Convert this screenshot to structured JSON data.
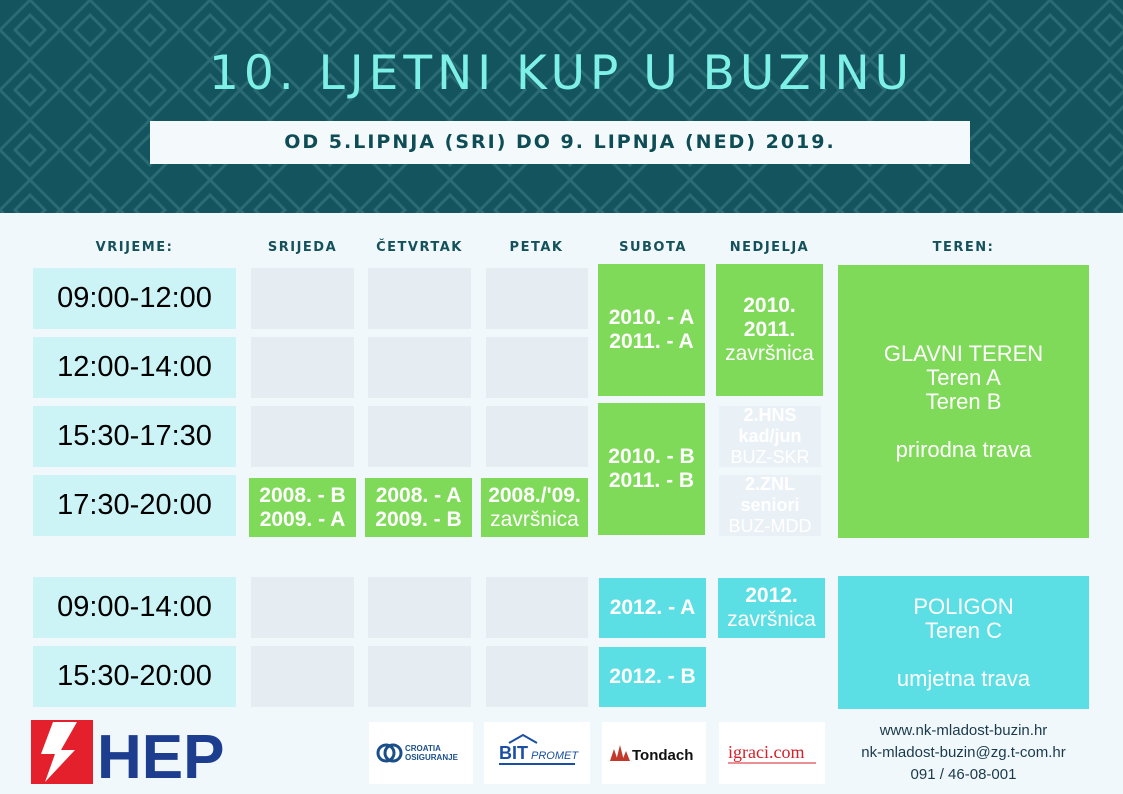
{
  "header": {
    "title": "10. LJETNI KUP U BUZINU",
    "subtitle": "OD 5.LIPNJA (SRI) DO 9. LIPNJA (NED) 2019."
  },
  "columns": {
    "time": "VRIJEME:",
    "wed": "SRIJEDA",
    "thu": "ČETVRTAK",
    "fri": "PETAK",
    "sat": "SUBOTA",
    "sun": "NEDJELJA",
    "venue": "TEREN:"
  },
  "times": [
    "09:00-12:00",
    "12:00-14:00",
    "15:30-17:30",
    "17:30-20:00",
    "09:00-14:00",
    "15:30-20:00"
  ],
  "games": {
    "wed_evening": [
      "2008. - B",
      "2009. - A"
    ],
    "thu_evening": [
      "2008. - A",
      "2009. - B"
    ],
    "fri_evening": [
      "2008./'09.",
      "završnica"
    ],
    "sat_morning": [
      "2010. - A",
      "2011. - A"
    ],
    "sat_afternoon": [
      "2010. - B",
      "2011. - B"
    ],
    "sun_morning": [
      "2010.",
      "2011.",
      "završnica"
    ],
    "sun_hns": [
      "2.HNS",
      "kad/jun",
      "BUZ-SKR"
    ],
    "sun_znl": [
      "2.ZNL",
      "seniori",
      "BUZ-MDD"
    ],
    "sat_poligon_1": "2012. - A",
    "sat_poligon_2": "2012. - B",
    "sun_poligon": [
      "2012.",
      "završnica"
    ]
  },
  "venues": {
    "main": [
      "GLAVNI TEREN",
      "Teren A",
      "Teren B",
      "prirodna trava"
    ],
    "poligon": [
      "POLIGON",
      "Teren C",
      "umjetna trava"
    ]
  },
  "sponsors": {
    "hep": "HEP",
    "croatia": [
      "CROATIA",
      "OSIGURANJE"
    ],
    "bit": [
      "BIT",
      "PROMET"
    ],
    "tondach": "Tondach",
    "igraci": "igraci.com"
  },
  "contact": {
    "web": "www.nk-mladost-buzin.hr",
    "email": "nk-mladost-buzin@zg.t-com.hr",
    "phone": "091 / 46-08-001"
  },
  "colors": {
    "header_bg": "#13545e",
    "title": "#7ff0e6",
    "green": "#80da59",
    "cyan": "#5bdfe4",
    "time_bg": "#ccf4f6",
    "hep_red": "#e3202b",
    "hep_blue": "#1d3d8f"
  }
}
